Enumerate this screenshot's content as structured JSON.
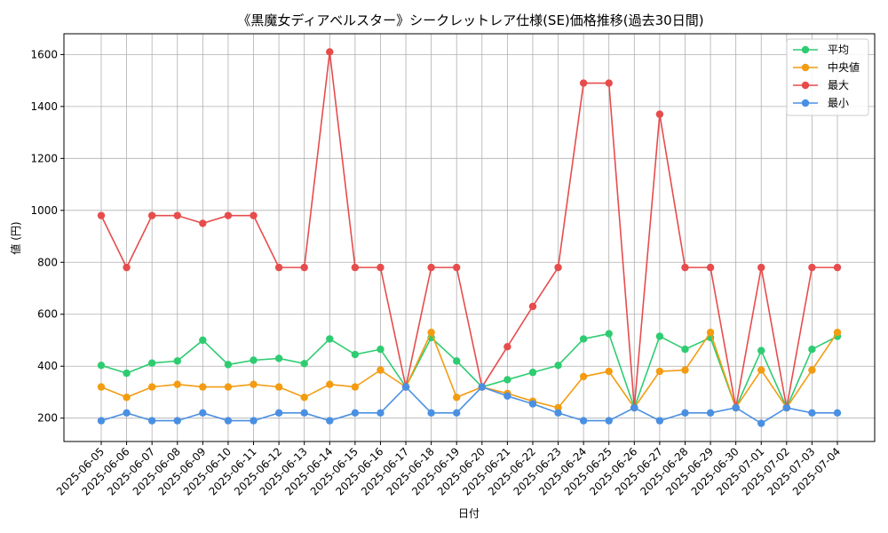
{
  "chart_data": {
    "type": "line",
    "title": "《黒魔女ディアベルスター》シークレットレア仕様(SE)価格推移(過去30日間)",
    "xlabel": "日付",
    "ylabel": "値 (円)",
    "ylim": [
      110,
      1680
    ],
    "yticks": [
      200,
      400,
      600,
      800,
      1000,
      1200,
      1400,
      1600
    ],
    "grid": true,
    "legend_position": "top-right",
    "categories": [
      "2025-06-05",
      "2025-06-06",
      "2025-06-07",
      "2025-06-08",
      "2025-06-09",
      "2025-06-10",
      "2025-06-11",
      "2025-06-12",
      "2025-06-13",
      "2025-06-14",
      "2025-06-15",
      "2025-06-16",
      "2025-06-17",
      "2025-06-18",
      "2025-06-19",
      "2025-06-20",
      "2025-06-21",
      "2025-06-22",
      "2025-06-23",
      "2025-06-24",
      "2025-06-25",
      "2025-06-26",
      "2025-06-27",
      "2025-06-28",
      "2025-06-29",
      "2025-06-30",
      "2025-07-01",
      "2025-07-02",
      "2025-07-03",
      "2025-07-04"
    ],
    "series": [
      {
        "name": "平均",
        "color": "#2ecc71",
        "values": [
          403,
          373,
          412,
          420,
          500,
          406,
          423,
          430,
          410,
          505,
          445,
          465,
          320,
          510,
          420,
          320,
          348,
          376,
          403,
          505,
          525,
          240,
          515,
          465,
          510,
          240,
          460,
          240,
          465,
          515
        ]
      },
      {
        "name": "中央値",
        "color": "#f39c12",
        "values": [
          320,
          280,
          320,
          330,
          320,
          320,
          330,
          320,
          280,
          330,
          320,
          385,
          320,
          530,
          280,
          320,
          295,
          265,
          240,
          360,
          380,
          240,
          380,
          385,
          530,
          240,
          385,
          240,
          385,
          530
        ]
      },
      {
        "name": "最大",
        "color": "#e74c4c",
        "values": [
          980,
          780,
          980,
          980,
          950,
          980,
          980,
          780,
          780,
          1610,
          780,
          780,
          320,
          780,
          780,
          320,
          475,
          630,
          780,
          1490,
          1490,
          240,
          1370,
          780,
          780,
          240,
          780,
          240,
          780,
          780
        ]
      },
      {
        "name": "最小",
        "color": "#4a90e2",
        "values": [
          190,
          220,
          190,
          190,
          220,
          190,
          190,
          220,
          220,
          190,
          220,
          220,
          320,
          220,
          220,
          320,
          285,
          255,
          220,
          190,
          190,
          240,
          190,
          220,
          220,
          240,
          180,
          240,
          220,
          220
        ]
      }
    ]
  }
}
